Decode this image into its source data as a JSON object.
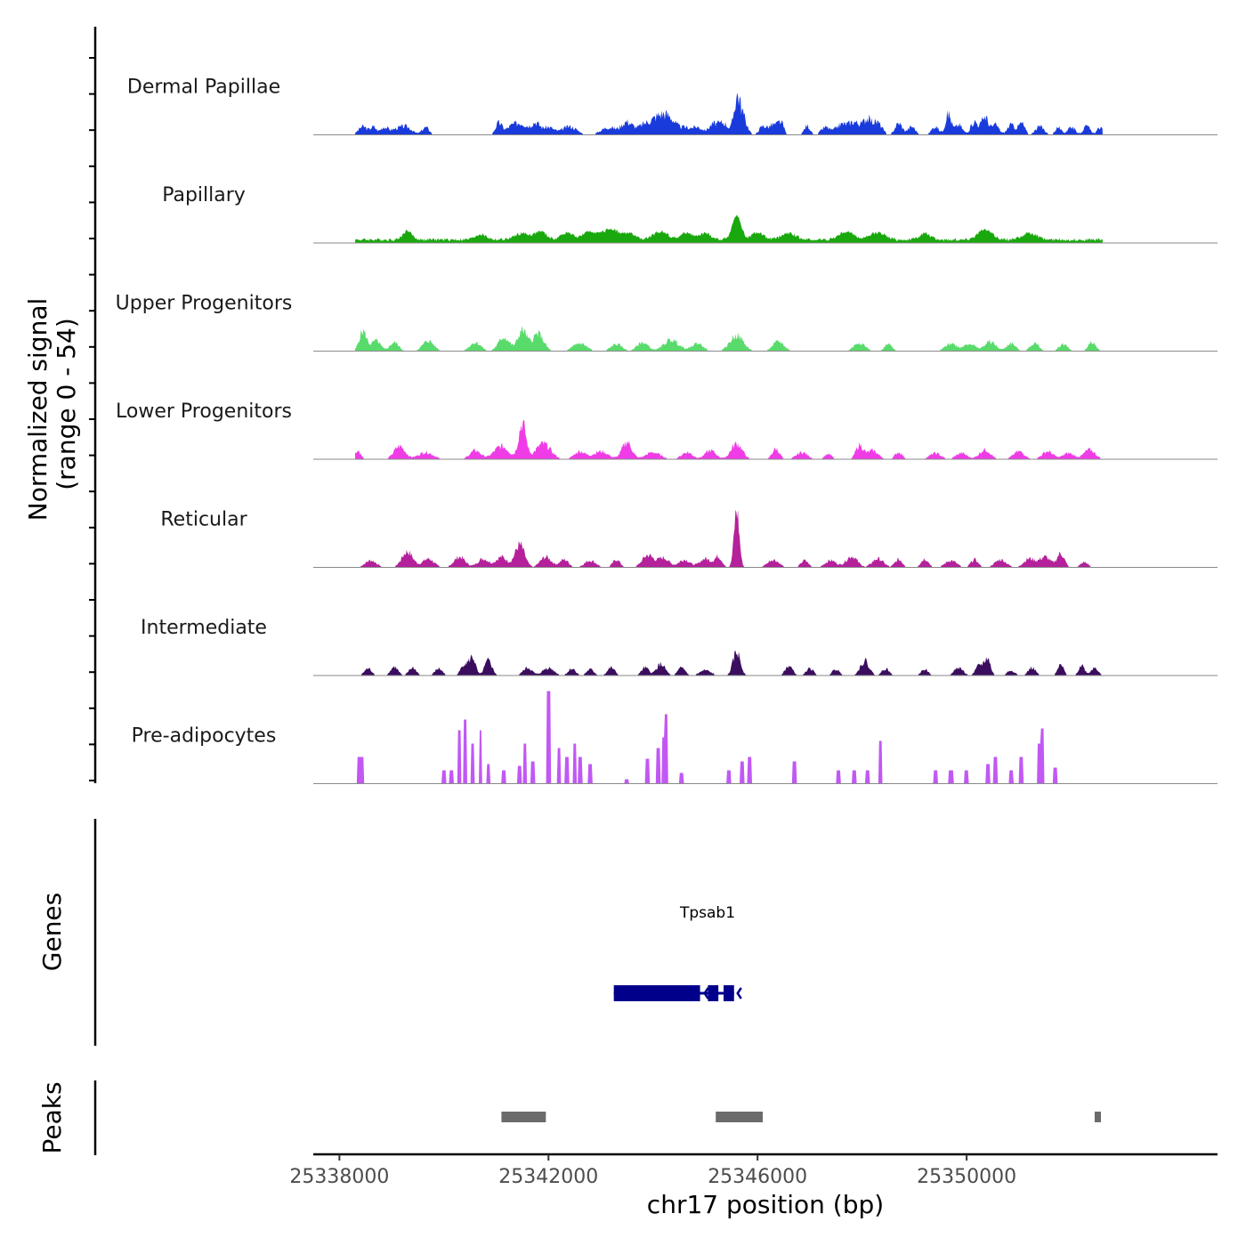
{
  "chart_data": {
    "type": "coverage",
    "chromosome": "chr17",
    "xlabel": "chr17 position (bp)",
    "ylabel_line1": "Normalized signal",
    "ylabel_line2": "(range 0 - 54)",
    "xlim": [
      25337500,
      25354800
    ],
    "xticks": [
      25338000,
      25342000,
      25346000,
      25350000
    ],
    "xtick_labels": [
      "25338000",
      "25342000",
      "25346000",
      "25350000"
    ],
    "signal_range": [
      0,
      54
    ],
    "data_extent": [
      25338300,
      25352600
    ],
    "tracks": [
      {
        "name": "Dermal Papillae",
        "color": "#1a3bdc",
        "mode": "sparse",
        "peaks": [
          [
            25338450,
            10,
            120
          ],
          [
            25338650,
            9,
            80
          ],
          [
            25338850,
            8,
            100
          ],
          [
            25339100,
            7,
            200
          ],
          [
            25339300,
            7,
            150
          ],
          [
            25339650,
            9,
            100
          ],
          [
            25341050,
            14,
            90
          ],
          [
            25341300,
            10,
            150
          ],
          [
            25341500,
            12,
            150
          ],
          [
            25341750,
            14,
            120
          ],
          [
            25342000,
            9,
            150
          ],
          [
            25342400,
            10,
            200
          ],
          [
            25343150,
            9,
            200
          ],
          [
            25343500,
            15,
            150
          ],
          [
            25343850,
            12,
            200
          ],
          [
            25344150,
            22,
            200
          ],
          [
            25344350,
            12,
            150
          ],
          [
            25344600,
            8,
            150
          ],
          [
            25344850,
            9,
            150
          ],
          [
            25345150,
            12,
            120
          ],
          [
            25345350,
            14,
            130
          ],
          [
            25345600,
            35,
            80
          ],
          [
            25345700,
            24,
            120
          ],
          [
            25346100,
            10,
            100
          ],
          [
            25346300,
            12,
            120
          ],
          [
            25346450,
            13,
            80
          ],
          [
            25346950,
            11,
            80
          ],
          [
            25347300,
            9,
            120
          ],
          [
            25347600,
            12,
            150
          ],
          [
            25347850,
            15,
            150
          ],
          [
            25348100,
            18,
            120
          ],
          [
            25348300,
            14,
            120
          ],
          [
            25348700,
            14,
            100
          ],
          [
            25348950,
            10,
            100
          ],
          [
            25349400,
            10,
            100
          ],
          [
            25349650,
            25,
            80
          ],
          [
            25349850,
            12,
            100
          ],
          [
            25350150,
            16,
            100
          ],
          [
            25350350,
            22,
            90
          ],
          [
            25350550,
            12,
            100
          ],
          [
            25350850,
            12,
            100
          ],
          [
            25351050,
            14,
            90
          ],
          [
            25351400,
            10,
            120
          ],
          [
            25351750,
            9,
            80
          ],
          [
            25352000,
            10,
            100
          ],
          [
            25352300,
            10,
            100
          ],
          [
            25352550,
            9,
            70
          ]
        ]
      },
      {
        "name": "Papillary",
        "color": "#19a80e",
        "mode": "dense",
        "peaks": [
          [
            25339300,
            10,
            120
          ],
          [
            25340700,
            6,
            150
          ],
          [
            25341500,
            7,
            200
          ],
          [
            25341850,
            9,
            150
          ],
          [
            25342350,
            8,
            150
          ],
          [
            25342800,
            9,
            200
          ],
          [
            25343200,
            12,
            200
          ],
          [
            25343550,
            7,
            150
          ],
          [
            25344150,
            9,
            200
          ],
          [
            25344650,
            8,
            150
          ],
          [
            25345000,
            7,
            150
          ],
          [
            25345600,
            27,
            120
          ],
          [
            25346000,
            8,
            150
          ],
          [
            25346600,
            7,
            200
          ],
          [
            25347700,
            9,
            200
          ],
          [
            25348300,
            8,
            200
          ],
          [
            25349200,
            7,
            150
          ],
          [
            25350350,
            11,
            200
          ],
          [
            25351200,
            7,
            200
          ]
        ]
      },
      {
        "name": "Upper Progenitors",
        "color": "#59db6c",
        "mode": "patchy",
        "peaks": [
          [
            25338450,
            23,
            100
          ],
          [
            25338700,
            12,
            120
          ],
          [
            25339050,
            10,
            120
          ],
          [
            25339700,
            12,
            150
          ],
          [
            25340600,
            10,
            150
          ],
          [
            25341150,
            16,
            150
          ],
          [
            25341500,
            24,
            120
          ],
          [
            25341800,
            20,
            150
          ],
          [
            25342600,
            9,
            180
          ],
          [
            25343300,
            8,
            150
          ],
          [
            25343800,
            10,
            150
          ],
          [
            25344350,
            13,
            200
          ],
          [
            25344850,
            9,
            150
          ],
          [
            25345600,
            18,
            180
          ],
          [
            25346400,
            11,
            150
          ],
          [
            25347950,
            10,
            150
          ],
          [
            25348500,
            8,
            100
          ],
          [
            25349700,
            9,
            150
          ],
          [
            25350050,
            9,
            150
          ],
          [
            25350450,
            11,
            150
          ],
          [
            25350850,
            9,
            120
          ],
          [
            25351300,
            9,
            120
          ],
          [
            25351850,
            8,
            120
          ],
          [
            25352400,
            10,
            100
          ]
        ]
      },
      {
        "name": "Lower Progenitors",
        "color": "#f03ce6",
        "mode": "patchy",
        "peaks": [
          [
            25338350,
            10,
            80
          ],
          [
            25339150,
            15,
            150
          ],
          [
            25339650,
            8,
            200
          ],
          [
            25340600,
            10,
            150
          ],
          [
            25341100,
            15,
            200
          ],
          [
            25341500,
            41,
            100
          ],
          [
            25341900,
            18,
            200
          ],
          [
            25342600,
            9,
            150
          ],
          [
            25343000,
            9,
            200
          ],
          [
            25343500,
            20,
            130
          ],
          [
            25344000,
            8,
            200
          ],
          [
            25344650,
            8,
            150
          ],
          [
            25345100,
            10,
            150
          ],
          [
            25345600,
            18,
            150
          ],
          [
            25346350,
            12,
            100
          ],
          [
            25346850,
            8,
            150
          ],
          [
            25347350,
            6,
            100
          ],
          [
            25347950,
            16,
            100
          ],
          [
            25348200,
            10,
            150
          ],
          [
            25348700,
            8,
            100
          ],
          [
            25349400,
            7,
            150
          ],
          [
            25349900,
            7,
            150
          ],
          [
            25350350,
            11,
            150
          ],
          [
            25351000,
            9,
            150
          ],
          [
            25351550,
            9,
            150
          ],
          [
            25351950,
            7,
            150
          ],
          [
            25352350,
            11,
            150
          ]
        ]
      },
      {
        "name": "Reticular",
        "color": "#b4219b",
        "mode": "patchy",
        "peaks": [
          [
            25338600,
            8,
            150
          ],
          [
            25339300,
            18,
            150
          ],
          [
            25339700,
            10,
            150
          ],
          [
            25340300,
            12,
            150
          ],
          [
            25340750,
            10,
            150
          ],
          [
            25341100,
            12,
            150
          ],
          [
            25341450,
            26,
            130
          ],
          [
            25341950,
            12,
            150
          ],
          [
            25342300,
            9,
            120
          ],
          [
            25342800,
            8,
            150
          ],
          [
            25343300,
            9,
            100
          ],
          [
            25343900,
            14,
            150
          ],
          [
            25344200,
            11,
            150
          ],
          [
            25344600,
            9,
            150
          ],
          [
            25345000,
            10,
            150
          ],
          [
            25345250,
            12,
            100
          ],
          [
            25345600,
            66,
            70
          ],
          [
            25346300,
            9,
            150
          ],
          [
            25346900,
            8,
            100
          ],
          [
            25347400,
            8,
            150
          ],
          [
            25347800,
            13,
            150
          ],
          [
            25348300,
            10,
            150
          ],
          [
            25348700,
            9,
            100
          ],
          [
            25349200,
            10,
            100
          ],
          [
            25349700,
            8,
            150
          ],
          [
            25350150,
            9,
            100
          ],
          [
            25350650,
            9,
            150
          ],
          [
            25351200,
            10,
            150
          ],
          [
            25351500,
            12,
            150
          ],
          [
            25351800,
            16,
            100
          ],
          [
            25352250,
            6,
            100
          ]
        ]
      },
      {
        "name": "Intermediate",
        "color": "#3b0d5e",
        "mode": "patchy",
        "peaks": [
          [
            25338550,
            8,
            100
          ],
          [
            25339050,
            10,
            100
          ],
          [
            25339400,
            9,
            100
          ],
          [
            25339900,
            8,
            100
          ],
          [
            25340400,
            14,
            100
          ],
          [
            25340550,
            20,
            80
          ],
          [
            25340850,
            17,
            100
          ],
          [
            25341600,
            9,
            120
          ],
          [
            25342000,
            9,
            150
          ],
          [
            25342450,
            8,
            100
          ],
          [
            25342800,
            7,
            100
          ],
          [
            25343200,
            9,
            100
          ],
          [
            25343850,
            9,
            100
          ],
          [
            25344150,
            13,
            120
          ],
          [
            25344550,
            9,
            100
          ],
          [
            25345000,
            6,
            150
          ],
          [
            25345600,
            27,
            100
          ],
          [
            25346600,
            11,
            100
          ],
          [
            25347000,
            8,
            100
          ],
          [
            25347500,
            7,
            100
          ],
          [
            25348050,
            17,
            120
          ],
          [
            25348450,
            8,
            100
          ],
          [
            25349200,
            7,
            100
          ],
          [
            25349850,
            9,
            120
          ],
          [
            25350250,
            12,
            100
          ],
          [
            25350400,
            19,
            80
          ],
          [
            25350850,
            6,
            100
          ],
          [
            25351250,
            9,
            100
          ],
          [
            25351800,
            12,
            80
          ],
          [
            25352200,
            12,
            80
          ],
          [
            25352450,
            9,
            100
          ]
        ]
      },
      {
        "name": "Pre-adipocytes",
        "color": "#c158f4",
        "mode": "blocks",
        "peaks": [
          [
            25338400,
            30,
            60
          ],
          [
            25340000,
            15,
            40
          ],
          [
            25340150,
            15,
            40
          ],
          [
            25340300,
            60,
            30
          ],
          [
            25340400,
            72,
            30
          ],
          [
            25340550,
            45,
            30
          ],
          [
            25340700,
            60,
            30
          ],
          [
            25340850,
            22,
            30
          ],
          [
            25341150,
            15,
            40
          ],
          [
            25341450,
            20,
            40
          ],
          [
            25341550,
            45,
            30
          ],
          [
            25341700,
            25,
            40
          ],
          [
            25342000,
            104,
            35
          ],
          [
            25342200,
            40,
            30
          ],
          [
            25342350,
            30,
            40
          ],
          [
            25342500,
            45,
            30
          ],
          [
            25342600,
            30,
            40
          ],
          [
            25342800,
            22,
            40
          ],
          [
            25343500,
            5,
            40
          ],
          [
            25343900,
            28,
            40
          ],
          [
            25344100,
            40,
            40
          ],
          [
            25344200,
            52,
            30
          ],
          [
            25344250,
            78,
            30
          ],
          [
            25344550,
            12,
            40
          ],
          [
            25345450,
            15,
            40
          ],
          [
            25345700,
            25,
            40
          ],
          [
            25345850,
            30,
            40
          ],
          [
            25346700,
            25,
            40
          ],
          [
            25347550,
            15,
            40
          ],
          [
            25347850,
            15,
            40
          ],
          [
            25348100,
            15,
            40
          ],
          [
            25348350,
            48,
            30
          ],
          [
            25349400,
            15,
            40
          ],
          [
            25349700,
            15,
            40
          ],
          [
            25350000,
            15,
            40
          ],
          [
            25350400,
            22,
            40
          ],
          [
            25350550,
            30,
            40
          ],
          [
            25350850,
            15,
            40
          ],
          [
            25351050,
            30,
            40
          ],
          [
            25351400,
            45,
            40
          ],
          [
            25351450,
            62,
            30
          ],
          [
            25351700,
            18,
            40
          ]
        ]
      }
    ],
    "gene": {
      "name": "Tpsab1",
      "strand": "-",
      "exons": [
        [
          25343250,
          25344900
        ],
        [
          25345050,
          25345250
        ],
        [
          25345350,
          25345550
        ]
      ]
    },
    "peaks_track": {
      "label": "Peaks",
      "regions": [
        [
          25341100,
          25341950
        ],
        [
          25345200,
          25346100
        ],
        [
          25352450,
          25352550
        ]
      ]
    },
    "genes_track_label": "Genes"
  }
}
